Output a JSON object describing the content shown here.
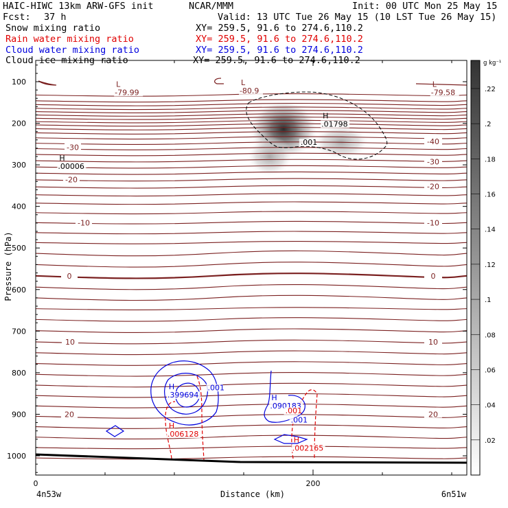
{
  "header": {
    "model": "HAIC-HIWC 13km ARW-GFS init",
    "org": "NCAR/MMM",
    "init": "Init: 00 UTC Mon 25 May 15",
    "fcst_label": "Fcst:",
    "fcst_value": "37 h",
    "valid": "Valid: 13 UTC Tue 26 May 15 (10 LST Tue 26 May 15)"
  },
  "legend": [
    {
      "name": "Snow mixing ratio",
      "xy": "XY= 259.5, 91.6 to 274.6,110.2",
      "color": "#000000"
    },
    {
      "name": "Rain water mixing ratio",
      "xy": "XY= 259.5, 91.6 to 274.6,110.2",
      "color": "#e00000"
    },
    {
      "name": "Cloud water mixing ratio",
      "xy": "XY= 259.5, 91.6 to 274.6,110.2",
      "color": "#0000dd"
    },
    {
      "name": "Cloud ice mixing ratio",
      "xy": "XY= 259.5, 91.6 to 274.6,110.2",
      "color": "#000000"
    }
  ],
  "colorbar": {
    "unit": "g kg⁻¹",
    "ticks": [
      ".22",
      ".2",
      ".18",
      ".16",
      ".14",
      ".12",
      ".1",
      ".08",
      ".06",
      ".04",
      ".02"
    ]
  },
  "chart_data": {
    "type": "heatmap",
    "ylabel": "Pressure (hPa)",
    "xlabel": "Distance (km)",
    "ylim": [
      1050,
      50
    ],
    "xlim": [
      0,
      310
    ],
    "yticks": [
      "100",
      "200",
      "300",
      "400",
      "500",
      "600",
      "700",
      "800",
      "900",
      "1000"
    ],
    "xticks": [
      "0",
      "200"
    ],
    "x_endpoints": [
      "4n53w",
      "6n51w"
    ],
    "temperature_contours": [
      {
        "label": "-30",
        "p": 258
      },
      {
        "label": "-20",
        "p": 335
      },
      {
        "label": "-10",
        "p": 439
      },
      {
        "label": "0",
        "p": 567
      },
      {
        "label": "10",
        "p": 726
      },
      {
        "label": "20",
        "p": 900
      }
    ],
    "temperature_labels_right": [
      "-40",
      "-30",
      "-20",
      "-10",
      "0",
      "10",
      "20"
    ],
    "extrema": [
      {
        "kind": "L",
        "value": "-79.99",
        "x": 58,
        "p": 112,
        "color": "#7a1f1f"
      },
      {
        "kind": "L",
        "value": "-80.9",
        "x": 148,
        "p": 108,
        "color": "#7a1f1f"
      },
      {
        "kind": "L",
        "value": "-79.58",
        "x": 286,
        "p": 112,
        "color": "#7a1f1f"
      },
      {
        "kind": "H",
        "value": ".00006",
        "x": 17,
        "p": 290,
        "color": "#000000"
      },
      {
        "kind": "H",
        "value": ".01798",
        "x": 207,
        "p": 188,
        "color": "#000000"
      },
      {
        "kind": "H",
        "value": ".399694",
        "x": 96,
        "p": 840,
        "color": "#0000dd"
      },
      {
        "kind": "H",
        "value": ".090183",
        "x": 170,
        "p": 866,
        "color": "#0000dd"
      },
      {
        "kind": "H",
        "value": ".006128",
        "x": 96,
        "p": 934,
        "color": "#e00000"
      },
      {
        "kind": "H",
        "value": ".002165",
        "x": 186,
        "p": 968,
        "color": "#e00000"
      }
    ],
    "contour_labels": [
      {
        "text": ".001",
        "x": 191,
        "p": 252,
        "color": "#000000"
      },
      {
        "text": ".001",
        "x": 124,
        "p": 842,
        "color": "#0000dd"
      },
      {
        "text": ".001",
        "x": 184,
        "p": 920,
        "color": "#0000dd"
      },
      {
        "text": ".001",
        "x": 180,
        "p": 898,
        "color": "#e00000"
      }
    ],
    "snow_max": {
      "x": 178,
      "p": 215,
      "value": 0.22
    },
    "snow_secondary": {
      "x": 222,
      "p": 248,
      "value": 0.1
    }
  }
}
